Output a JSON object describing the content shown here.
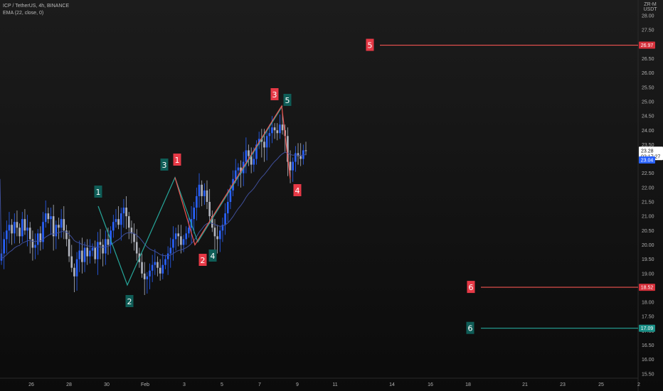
{
  "legend": {
    "symbol_line": "ICP / TetherUS, 4h, BINANCE",
    "indicator_line": "EMA (22, close, 0)"
  },
  "axis": {
    "currency_top": "ZR-M",
    "currency": "USDT"
  },
  "colors": {
    "background": "#141414",
    "candle_up": "#2962ff",
    "candle_down": "#b2b5be",
    "ema": "#3f4f9a",
    "wave_teal": "#26a69a",
    "wave_red": "#ef5350",
    "label_teal_bg": "#0f5d57",
    "label_red_bg": "#e63946",
    "tag_current_bg": "#ffffff",
    "tag_ema_bg": "#2962ff"
  },
  "chart_data": {
    "type": "candlestick",
    "title": "ICP / TetherUS, 4h, BINANCE",
    "indicator": "EMA (22, close, 0)",
    "ylim": [
      15.4,
      28.4
    ],
    "y_ticks": [
      "28.00",
      "27.50",
      "27.00",
      "26.50",
      "26.00",
      "25.50",
      "25.00",
      "24.50",
      "24.00",
      "23.50",
      "23.00",
      "22.50",
      "22.00",
      "21.50",
      "21.00",
      "20.50",
      "20.00",
      "19.50",
      "19.00",
      "18.50",
      "18.00",
      "17.50",
      "17.00",
      "16.50",
      "16.00",
      "15.50"
    ],
    "x_ticks": [
      "26",
      "28",
      "30",
      "Feb",
      "3",
      "5",
      "7",
      "9",
      "11",
      "14",
      "16",
      "18",
      "21",
      "23",
      "25",
      "2"
    ],
    "closes": [
      19.7,
      20.2,
      20.5,
      20.7,
      20.4,
      20.8,
      20.6,
      20.3,
      20.9,
      20.5,
      20.6,
      20.2,
      19.9,
      20.0,
      20.4,
      20.1,
      20.8,
      21.1,
      20.9,
      21.0,
      20.3,
      20.7,
      20.6,
      20.9,
      20.5,
      20.2,
      19.6,
      19.2,
      18.9,
      19.5,
      19.8,
      19.4,
      19.9,
      19.6,
      19.8,
      19.9,
      19.5,
      20.1,
      20.0,
      19.7,
      20.2,
      20.0,
      20.5,
      20.8,
      20.9,
      20.7,
      21.1,
      21.3,
      21.0,
      20.6,
      20.4,
      20.1,
      19.7,
      19.4,
      19.0,
      18.8,
      18.9,
      19.1,
      19.3,
      19.4,
      19.2,
      19.0,
      19.3,
      19.5,
      19.7,
      19.9,
      20.2,
      20.4,
      20.3,
      20.0,
      20.2,
      20.4,
      20.6,
      20.9,
      21.3,
      21.7,
      22.1,
      21.7,
      21.9,
      21.5,
      21.0,
      20.6,
      20.3,
      20.2,
      20.5,
      20.7,
      21.1,
      21.5,
      21.9,
      22.3,
      22.6,
      22.7,
      22.5,
      22.9,
      23.3,
      23.1,
      22.8,
      23.0,
      23.5,
      23.7,
      23.6,
      23.4,
      23.8,
      23.9,
      24.1,
      24.0,
      23.9,
      24.2,
      24.0,
      23.8,
      22.9,
      22.6,
      22.9,
      23.2,
      23.1,
      23.0,
      23.3,
      23.28
    ],
    "current_price": "23.28",
    "countdown": "02:17:27",
    "ema_value": "23.04",
    "wave_counts": [
      {
        "label": "1",
        "color": "teal",
        "price": 21.35
      },
      {
        "label": "2",
        "color": "teal",
        "price": 18.6
      },
      {
        "label": "3",
        "color": "teal",
        "price": 22.35
      },
      {
        "label": "4",
        "color": "teal",
        "price": 20.1
      },
      {
        "label": "5",
        "color": "teal",
        "price": 24.85
      },
      {
        "label": "1",
        "color": "red",
        "price": 22.35
      },
      {
        "label": "2",
        "color": "red",
        "price": 20.0
      },
      {
        "label": "3",
        "color": "red",
        "price": 24.85
      },
      {
        "label": "4",
        "color": "red",
        "price": 22.3
      }
    ],
    "target_levels": [
      {
        "label": "5",
        "price": "26.97",
        "color": "red"
      },
      {
        "label": "6",
        "price": "18.52",
        "color": "red"
      },
      {
        "label": "6",
        "price": "17.09",
        "color": "teal"
      }
    ]
  }
}
